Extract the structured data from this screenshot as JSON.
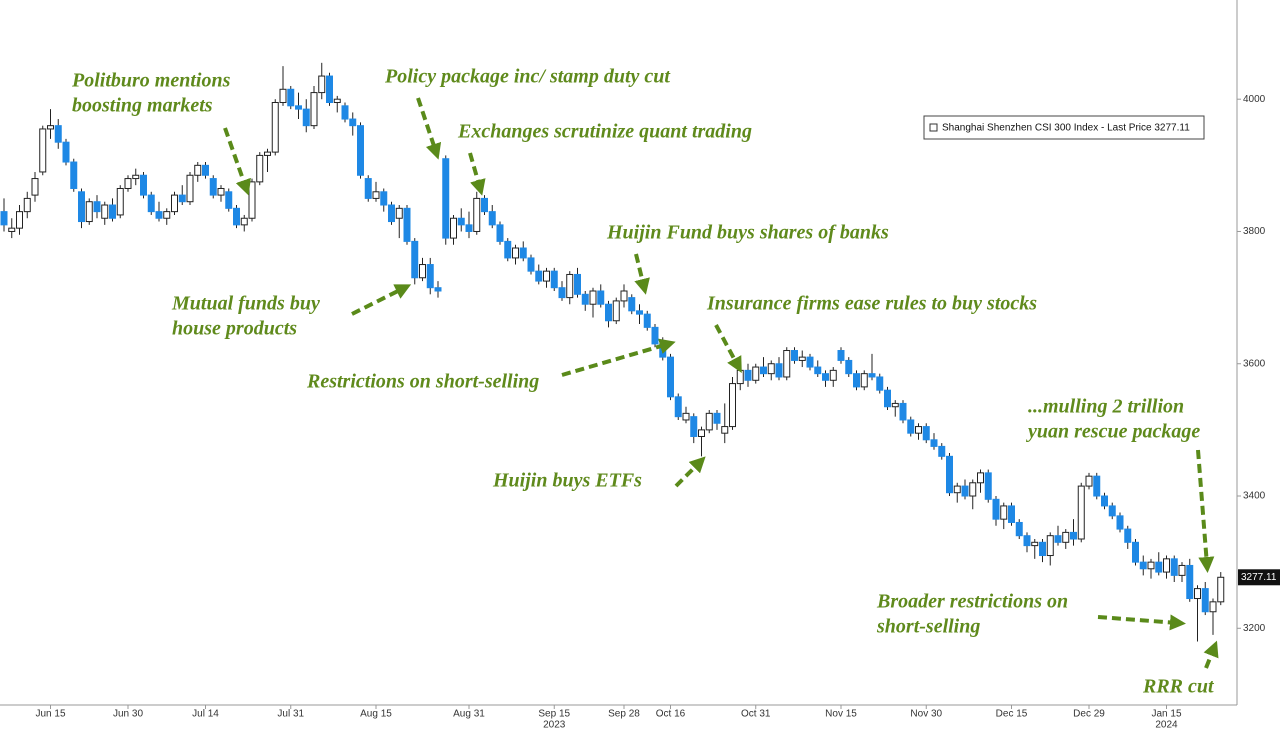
{
  "chart_data": {
    "type": "candlestick",
    "series": [
      {
        "name": "Shanghai Shenzhen CSI 300 Index - Last Price 3277.11",
        "up_color": "#ffffff",
        "down_color": "#1e88e5",
        "wick_color": "#222222",
        "ohlc": [
          [
            3830,
            3850,
            3800,
            3810
          ],
          [
            3800,
            3820,
            3790,
            3805
          ],
          [
            3805,
            3840,
            3795,
            3830
          ],
          [
            3830,
            3860,
            3820,
            3850
          ],
          [
            3855,
            3890,
            3845,
            3880
          ],
          [
            3890,
            3960,
            3885,
            3955
          ],
          [
            3955,
            3985,
            3940,
            3960
          ],
          [
            3960,
            3970,
            3925,
            3935
          ],
          [
            3935,
            3940,
            3900,
            3905
          ],
          [
            3905,
            3910,
            3860,
            3865
          ],
          [
            3860,
            3865,
            3805,
            3815
          ],
          [
            3815,
            3850,
            3810,
            3845
          ],
          [
            3845,
            3855,
            3820,
            3830
          ],
          [
            3820,
            3845,
            3810,
            3840
          ],
          [
            3840,
            3850,
            3815,
            3820
          ],
          [
            3825,
            3870,
            3820,
            3865
          ],
          [
            3865,
            3885,
            3860,
            3880
          ],
          [
            3880,
            3895,
            3870,
            3885
          ],
          [
            3885,
            3890,
            3850,
            3855
          ],
          [
            3855,
            3860,
            3825,
            3830
          ],
          [
            3830,
            3845,
            3815,
            3820
          ],
          [
            3820,
            3835,
            3810,
            3830
          ],
          [
            3830,
            3860,
            3825,
            3855
          ],
          [
            3855,
            3870,
            3840,
            3845
          ],
          [
            3845,
            3890,
            3840,
            3885
          ],
          [
            3885,
            3905,
            3875,
            3900
          ],
          [
            3900,
            3905,
            3880,
            3885
          ],
          [
            3880,
            3885,
            3850,
            3855
          ],
          [
            3855,
            3870,
            3845,
            3865
          ],
          [
            3860,
            3865,
            3830,
            3835
          ],
          [
            3835,
            3840,
            3805,
            3810
          ],
          [
            3810,
            3825,
            3800,
            3820
          ],
          [
            3820,
            3880,
            3815,
            3875
          ],
          [
            3875,
            3920,
            3870,
            3915
          ],
          [
            3915,
            3925,
            3890,
            3920
          ],
          [
            3920,
            4000,
            3915,
            3995
          ],
          [
            3995,
            4050,
            3990,
            4015
          ],
          [
            4015,
            4020,
            3985,
            3990
          ],
          [
            3990,
            4010,
            3970,
            3985
          ],
          [
            3985,
            4000,
            3950,
            3960
          ],
          [
            3960,
            4020,
            3955,
            4010
          ],
          [
            4010,
            4055,
            4000,
            4035
          ],
          [
            4035,
            4040,
            3990,
            3995
          ],
          [
            3995,
            4005,
            3980,
            4000
          ],
          [
            3990,
            3995,
            3965,
            3970
          ],
          [
            3970,
            3980,
            3945,
            3960
          ],
          [
            3960,
            3965,
            3880,
            3885
          ],
          [
            3880,
            3885,
            3845,
            3850
          ],
          [
            3850,
            3875,
            3845,
            3860
          ],
          [
            3860,
            3865,
            3830,
            3840
          ],
          [
            3840,
            3845,
            3810,
            3815
          ],
          [
            3820,
            3840,
            3790,
            3835
          ],
          [
            3835,
            3840,
            3780,
            3785
          ],
          [
            3785,
            3790,
            3720,
            3730
          ],
          [
            3730,
            3760,
            3725,
            3750
          ],
          [
            3750,
            3760,
            3705,
            3715
          ],
          [
            3715,
            3725,
            3700,
            3710
          ],
          [
            3910,
            3915,
            3780,
            3790
          ],
          [
            3790,
            3825,
            3780,
            3820
          ],
          [
            3820,
            3835,
            3800,
            3810
          ],
          [
            3810,
            3830,
            3790,
            3800
          ],
          [
            3800,
            3860,
            3795,
            3850
          ],
          [
            3850,
            3855,
            3825,
            3830
          ],
          [
            3830,
            3840,
            3805,
            3810
          ],
          [
            3810,
            3815,
            3780,
            3785
          ],
          [
            3785,
            3790,
            3755,
            3760
          ],
          [
            3760,
            3780,
            3750,
            3775
          ],
          [
            3775,
            3785,
            3755,
            3760
          ],
          [
            3760,
            3765,
            3735,
            3740
          ],
          [
            3740,
            3750,
            3720,
            3725
          ],
          [
            3725,
            3745,
            3715,
            3740
          ],
          [
            3740,
            3745,
            3710,
            3715
          ],
          [
            3715,
            3725,
            3695,
            3700
          ],
          [
            3700,
            3740,
            3690,
            3735
          ],
          [
            3735,
            3745,
            3700,
            3705
          ],
          [
            3705,
            3710,
            3680,
            3690
          ],
          [
            3690,
            3715,
            3670,
            3710
          ],
          [
            3710,
            3720,
            3685,
            3690
          ],
          [
            3690,
            3695,
            3655,
            3665
          ],
          [
            3665,
            3700,
            3660,
            3695
          ],
          [
            3695,
            3720,
            3685,
            3710
          ],
          [
            3700,
            3705,
            3675,
            3680
          ],
          [
            3680,
            3690,
            3660,
            3675
          ],
          [
            3675,
            3680,
            3650,
            3655
          ],
          [
            3655,
            3660,
            3625,
            3630
          ],
          [
            3630,
            3640,
            3605,
            3610
          ],
          [
            3610,
            3615,
            3545,
            3550
          ],
          [
            3550,
            3555,
            3515,
            3520
          ],
          [
            3515,
            3535,
            3510,
            3525
          ],
          [
            3520,
            3525,
            3480,
            3490
          ],
          [
            3490,
            3505,
            3460,
            3500
          ],
          [
            3500,
            3530,
            3495,
            3525
          ],
          [
            3525,
            3530,
            3500,
            3510
          ],
          [
            3495,
            3540,
            3480,
            3505
          ],
          [
            3505,
            3580,
            3500,
            3570
          ],
          [
            3570,
            3595,
            3560,
            3590
          ],
          [
            3590,
            3600,
            3565,
            3575
          ],
          [
            3575,
            3600,
            3570,
            3595
          ],
          [
            3595,
            3610,
            3580,
            3585
          ],
          [
            3585,
            3605,
            3575,
            3600
          ],
          [
            3600,
            3610,
            3575,
            3580
          ],
          [
            3580,
            3625,
            3575,
            3620
          ],
          [
            3620,
            3625,
            3600,
            3605
          ],
          [
            3605,
            3620,
            3595,
            3610
          ],
          [
            3610,
            3615,
            3590,
            3595
          ],
          [
            3595,
            3605,
            3580,
            3585
          ],
          [
            3585,
            3590,
            3565,
            3575
          ],
          [
            3575,
            3595,
            3565,
            3590
          ],
          [
            3620,
            3625,
            3600,
            3605
          ],
          [
            3605,
            3610,
            3580,
            3585
          ],
          [
            3585,
            3590,
            3560,
            3565
          ],
          [
            3565,
            3590,
            3560,
            3585
          ],
          [
            3585,
            3615,
            3575,
            3580
          ],
          [
            3580,
            3585,
            3555,
            3560
          ],
          [
            3560,
            3565,
            3530,
            3535
          ],
          [
            3535,
            3545,
            3520,
            3540
          ],
          [
            3540,
            3545,
            3510,
            3515
          ],
          [
            3515,
            3520,
            3490,
            3495
          ],
          [
            3495,
            3510,
            3485,
            3505
          ],
          [
            3505,
            3510,
            3480,
            3485
          ],
          [
            3485,
            3495,
            3470,
            3475
          ],
          [
            3475,
            3480,
            3455,
            3460
          ],
          [
            3460,
            3465,
            3400,
            3405
          ],
          [
            3405,
            3420,
            3390,
            3415
          ],
          [
            3415,
            3425,
            3395,
            3400
          ],
          [
            3400,
            3425,
            3380,
            3420
          ],
          [
            3420,
            3440,
            3405,
            3435
          ],
          [
            3435,
            3440,
            3390,
            3395
          ],
          [
            3395,
            3400,
            3355,
            3365
          ],
          [
            3365,
            3390,
            3350,
            3385
          ],
          [
            3385,
            3390,
            3355,
            3360
          ],
          [
            3360,
            3365,
            3335,
            3340
          ],
          [
            3340,
            3345,
            3315,
            3325
          ],
          [
            3325,
            3335,
            3305,
            3330
          ],
          [
            3330,
            3335,
            3300,
            3310
          ],
          [
            3310,
            3345,
            3295,
            3340
          ],
          [
            3340,
            3355,
            3325,
            3330
          ],
          [
            3330,
            3350,
            3320,
            3345
          ],
          [
            3345,
            3365,
            3325,
            3335
          ],
          [
            3335,
            3420,
            3330,
            3415
          ],
          [
            3415,
            3435,
            3410,
            3430
          ],
          [
            3430,
            3435,
            3395,
            3400
          ],
          [
            3400,
            3405,
            3380,
            3385
          ],
          [
            3385,
            3390,
            3365,
            3370
          ],
          [
            3370,
            3375,
            3345,
            3350
          ],
          [
            3350,
            3355,
            3320,
            3330
          ],
          [
            3330,
            3335,
            3295,
            3300
          ],
          [
            3300,
            3310,
            3280,
            3290
          ],
          [
            3290,
            3305,
            3275,
            3300
          ],
          [
            3300,
            3315,
            3280,
            3285
          ],
          [
            3285,
            3310,
            3275,
            3305
          ],
          [
            3305,
            3310,
            3270,
            3280
          ],
          [
            3280,
            3300,
            3270,
            3295
          ],
          [
            3295,
            3305,
            3240,
            3245
          ],
          [
            3245,
            3265,
            3180,
            3260
          ],
          [
            3260,
            3270,
            3220,
            3225
          ],
          [
            3225,
            3245,
            3190,
            3240
          ],
          [
            3240,
            3285,
            3235,
            3277.11
          ]
        ]
      }
    ],
    "categories": [
      null,
      null,
      null,
      null,
      null,
      null,
      "Jun 15",
      null,
      null,
      null,
      null,
      null,
      null,
      null,
      null,
      null,
      "Jun 30",
      null,
      null,
      null,
      null,
      null,
      null,
      null,
      null,
      null,
      "Jul 14",
      null,
      null,
      null,
      null,
      null,
      null,
      null,
      null,
      null,
      null,
      "Jul 31",
      null,
      null,
      null,
      null,
      null,
      null,
      null,
      null,
      null,
      null,
      "Aug 15",
      null,
      null,
      null,
      null,
      null,
      null,
      null,
      null,
      null,
      null,
      null,
      "Aug 31",
      null,
      null,
      null,
      null,
      null,
      null,
      null,
      null,
      null,
      null,
      "Sep 15",
      null,
      null,
      null,
      null,
      null,
      null,
      null,
      null,
      "Sep 28",
      null,
      null,
      null,
      null,
      null,
      "Oct 16",
      null,
      null,
      null,
      null,
      null,
      null,
      null,
      null,
      null,
      null,
      "Oct 31",
      null,
      null,
      null,
      null,
      null,
      null,
      null,
      null,
      null,
      null,
      "Nov 15",
      null,
      null,
      null,
      null,
      null,
      null,
      null,
      null,
      null,
      null,
      "Nov 30",
      null,
      null,
      null,
      null,
      null,
      null,
      null,
      null,
      null,
      null,
      "Dec 15",
      null,
      null,
      null,
      null,
      null,
      null,
      null,
      null,
      null,
      "Dec 29",
      null,
      null,
      null,
      null,
      null,
      null,
      null,
      null,
      null,
      "Jan 15",
      null,
      null,
      null,
      null,
      null,
      null,
      null
    ],
    "year_labels": [
      {
        "label": "2023",
        "under": "Sep 15"
      },
      {
        "label": "2024",
        "under": "Jan 15"
      }
    ],
    "last_price": 3277.11,
    "ylim": [
      3084,
      4150
    ],
    "yticks": [
      3200,
      3400,
      3600,
      3800,
      4000
    ],
    "grid": false,
    "legend": "upper right",
    "annotation_color": "#5f8a1c",
    "annotations": [
      {
        "lines": [
          "Politburo mentions",
          "boosting markets"
        ]
      },
      {
        "lines": [
          "Policy package inc/ stamp duty cut"
        ]
      },
      {
        "lines": [
          "Exchanges scrutinize quant trading"
        ]
      },
      {
        "lines": [
          "Huijin Fund buys shares of banks"
        ]
      },
      {
        "lines": [
          "Mutual funds buy",
          "house products"
        ]
      },
      {
        "lines": [
          "Insurance firms ease rules to buy stocks"
        ]
      },
      {
        "lines": [
          "Restrictions on short-selling"
        ]
      },
      {
        "lines": [
          "Huijin buys ETFs"
        ]
      },
      {
        "lines": [
          "...mulling 2 trillion",
          "yuan rescue package"
        ]
      },
      {
        "lines": [
          "Broader restrictions on",
          "short-selling"
        ]
      },
      {
        "lines": [
          "RRR cut"
        ]
      }
    ]
  }
}
